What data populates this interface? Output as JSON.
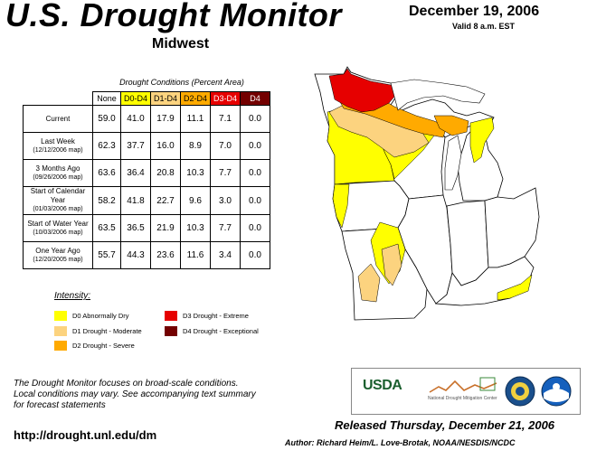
{
  "header": {
    "title": "U.S. Drought Monitor",
    "subtitle": "Midwest",
    "date": "December 19, 2006",
    "valid": "Valid 8 a.m. EST"
  },
  "table": {
    "caption": "Drought Conditions (Percent Area)",
    "columns": [
      "None",
      "D0-D4",
      "D1-D4",
      "D2-D4",
      "D3-D4",
      "D4"
    ],
    "column_colors": [
      "#ffffff",
      "#ffff00",
      "#fcd37f",
      "#ffaa00",
      "#e60000",
      "#730000"
    ],
    "column_text_colors": [
      "#000000",
      "#000000",
      "#000000",
      "#000000",
      "#ffffff",
      "#ffffff"
    ],
    "rows": [
      {
        "label": "Current",
        "sub": "",
        "values": [
          "59.0",
          "41.0",
          "17.9",
          "11.1",
          "7.1",
          "0.0"
        ]
      },
      {
        "label": "Last Week",
        "sub": "(12/12/2006 map)",
        "values": [
          "62.3",
          "37.7",
          "16.0",
          "8.9",
          "7.0",
          "0.0"
        ]
      },
      {
        "label": "3 Months Ago",
        "sub": "(09/26/2006 map)",
        "values": [
          "63.6",
          "36.4",
          "20.8",
          "10.3",
          "7.7",
          "0.0"
        ]
      },
      {
        "label": "Start of Calendar Year",
        "sub": "(01/03/2006 map)",
        "values": [
          "58.2",
          "41.8",
          "22.7",
          "9.6",
          "3.0",
          "0.0"
        ]
      },
      {
        "label": "Start of Water Year",
        "sub": "(10/03/2006 map)",
        "values": [
          "63.5",
          "36.5",
          "21.9",
          "10.3",
          "7.7",
          "0.0"
        ]
      },
      {
        "label": "One Year Ago",
        "sub": "(12/20/2005 map)",
        "values": [
          "55.7",
          "44.3",
          "23.6",
          "11.6",
          "3.4",
          "0.0"
        ]
      }
    ]
  },
  "legend": {
    "title": "Intensity:",
    "items": [
      {
        "label": "D0 Abnormally Dry",
        "color": "#ffff00"
      },
      {
        "label": "D1 Drought - Moderate",
        "color": "#fcd37f"
      },
      {
        "label": "D2 Drought - Severe",
        "color": "#ffaa00"
      },
      {
        "label": "D3 Drought - Extreme",
        "color": "#e60000"
      },
      {
        "label": "D4 Drought - Exceptional",
        "color": "#730000"
      }
    ]
  },
  "footer": {
    "note_line1": "The Drought Monitor focuses on broad-scale conditions.",
    "note_line2": "Local conditions may vary. See accompanying text summary",
    "note_line3": "for forecast statements",
    "url": "http://drought.unl.edu/dm",
    "released": "Released Thursday, December 21, 2006",
    "author": "Author: Richard Heim/L. Love-Brotak, NOAA/NESDIS/NCDC"
  },
  "logos": {
    "usda": "USDA",
    "ndmc": "National Drought Mitigation Center"
  }
}
